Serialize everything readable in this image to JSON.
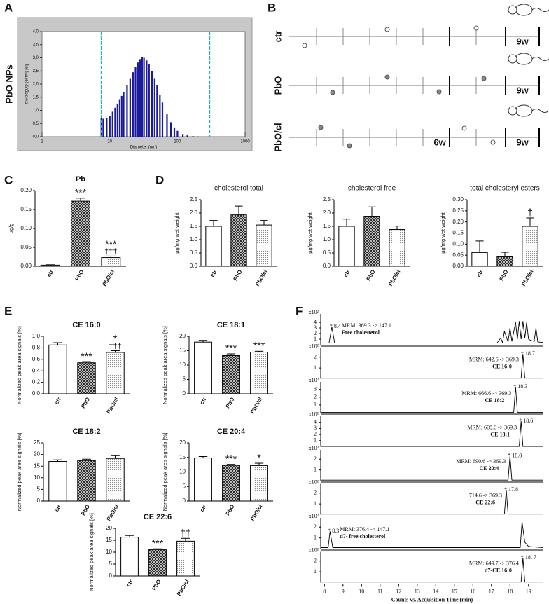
{
  "timeline": {
    "panel": "B",
    "rows": [
      {
        "label": "ctr",
        "end": "9w"
      },
      {
        "label": "PbO",
        "end": "9w"
      },
      {
        "label": "PbO/cl",
        "mid": "6w",
        "end": "9w"
      }
    ]
  },
  "bar_patterns": [
    "none",
    "hatch",
    "dots"
  ],
  "chart_data": [
    {
      "type": "bar",
      "panel": "A",
      "title": "PbO NPs",
      "xlabel": "Diameter (nm)",
      "ylabel": "dV/dlogDp (ecm³) [el]",
      "xlog": true,
      "color": "#1a1a9a",
      "vline_color": "#2ab0b8",
      "x": [
        7.5,
        8,
        9,
        10,
        11,
        12,
        13,
        14,
        15,
        16,
        18,
        20,
        22,
        24,
        26,
        28,
        30,
        32,
        35,
        38,
        42,
        46,
        50,
        55,
        60,
        70,
        80,
        90,
        100,
        120,
        140,
        170,
        200
      ],
      "values": [
        0.72,
        0.68,
        0.7,
        0.8,
        0.95,
        1.1,
        1.25,
        1.4,
        1.55,
        1.7,
        1.95,
        2.2,
        2.45,
        2.65,
        2.82,
        2.95,
        3.02,
        3.0,
        2.9,
        2.75,
        2.5,
        2.2,
        1.95,
        1.6,
        1.3,
        0.85,
        0.55,
        0.35,
        0.22,
        0.1,
        0.05,
        0.02,
        0.01
      ],
      "vlines": [
        7.5,
        300
      ],
      "xlim": [
        1,
        1000
      ],
      "xticks": [
        1,
        10,
        100,
        1000
      ],
      "ylim": [
        0,
        4
      ],
      "yticks": [
        {
          "value": 0,
          "label": "0,0"
        },
        {
          "value": 0.5,
          "label": "0,5"
        },
        {
          "value": 1,
          "label": "1,0"
        },
        {
          "value": 1.5,
          "label": "1,5"
        },
        {
          "value": 2,
          "label": "2,0"
        },
        {
          "value": 2.5,
          "label": "2,5"
        },
        {
          "value": 3,
          "label": "3,0"
        },
        {
          "value": 3.5,
          "label": "3,5"
        },
        {
          "value": 4,
          "label": "4,0"
        }
      ]
    },
    {
      "type": "bar",
      "panel": "C",
      "title": "Pb",
      "ylabel": "µg/g",
      "categories": [
        "ctr",
        "PbO",
        "PbO/cl"
      ],
      "values": [
        0.003,
        0.172,
        0.023
      ],
      "errors": [
        0.001,
        0.008,
        0.004
      ],
      "annotations": [
        null,
        "***",
        "***"
      ],
      "annotations2": [
        null,
        null,
        "†††"
      ],
      "ylim": [
        0,
        0.2
      ],
      "yticks": [
        {
          "value": 0,
          "label": "0.00"
        },
        0.05,
        {
          "value": 0.1,
          "label": "0.10"
        },
        0.15,
        {
          "value": 0.2,
          "label": "0.20"
        }
      ]
    },
    {
      "type": "bar",
      "panel": "D",
      "title": "cholesterol total",
      "ylabel": "µg/mg wet weight",
      "categories": [
        "ctr",
        "PbO",
        "PbO/cl"
      ],
      "values": [
        1.5,
        1.93,
        1.55
      ],
      "errors": [
        0.22,
        0.33,
        0.17
      ],
      "ylim": [
        0,
        2.5
      ],
      "yticks": [
        {
          "value": 0,
          "label": "0.0"
        },
        0.5,
        {
          "value": 1,
          "label": "1.0"
        },
        1.5,
        {
          "value": 2,
          "label": "2.0"
        },
        2.5
      ]
    },
    {
      "type": "bar",
      "title": "cholesterol free",
      "ylabel": "µg/mg wet weight",
      "categories": [
        "ctr",
        "PbO",
        "PbO/cl"
      ],
      "values": [
        1.5,
        1.88,
        1.38
      ],
      "errors": [
        0.27,
        0.35,
        0.13
      ],
      "ylim": [
        0,
        2.5
      ],
      "yticks": [
        {
          "value": 0,
          "label": "0.0"
        },
        0.5,
        {
          "value": 1,
          "label": "1.0"
        },
        1.5,
        {
          "value": 2,
          "label": "2.0"
        },
        2.5
      ]
    },
    {
      "type": "bar",
      "title": "total cholesteryl esters",
      "ylabel": "µg/mg wet weight",
      "categories": [
        "ctr",
        "PbO",
        "PbO/cl"
      ],
      "values": [
        0.062,
        0.043,
        0.18
      ],
      "errors": [
        0.052,
        0.02,
        0.038
      ],
      "annotations": [
        null,
        null,
        "†"
      ],
      "ylim": [
        0,
        0.3
      ],
      "yticks": [
        {
          "value": 0,
          "label": "0.00"
        },
        0.05,
        {
          "value": 0.1,
          "label": "0.10"
        },
        0.15,
        {
          "value": 0.2,
          "label": "0.20"
        },
        0.25,
        {
          "value": 0.3,
          "label": "0.30"
        }
      ]
    },
    {
      "type": "bar",
      "panel": "E",
      "title": "CE 16:0",
      "ylabel": "Normalized peak area signals [%]",
      "categories": [
        "ctr",
        "PbO",
        "PbO/cl"
      ],
      "values": [
        0.85,
        0.54,
        0.72
      ],
      "errors": [
        0.04,
        0.02,
        0.03
      ],
      "annotations": [
        null,
        "***",
        "*"
      ],
      "annotations2": [
        null,
        null,
        "†††"
      ],
      "ylim": [
        0,
        1
      ],
      "yticks": [
        {
          "value": 0,
          "label": "0.0"
        },
        0.2,
        0.4,
        0.6,
        0.8,
        {
          "value": 1,
          "label": "1.0"
        }
      ]
    },
    {
      "type": "bar",
      "title": "CE 18:1",
      "ylabel": "Normalized peak area signals [%]",
      "categories": [
        "ctr",
        "PbO",
        "PbO/cl"
      ],
      "values": [
        18,
        13.3,
        14.5
      ],
      "errors": [
        0.6,
        0.6,
        0.3
      ],
      "annotations": [
        null,
        "***",
        "***"
      ],
      "ylim": [
        0,
        20
      ],
      "yticks": [
        0,
        5,
        10,
        15,
        20
      ]
    },
    {
      "type": "bar",
      "title": "CE 18:2",
      "ylabel": "Normalized peak area signals [%]",
      "categories": [
        "ctr",
        "PbO",
        "PbO/cl"
      ],
      "values": [
        17,
        17.4,
        18.3
      ],
      "errors": [
        0.7,
        0.6,
        1.2
      ],
      "ylim": [
        0,
        25
      ],
      "yticks": [
        0,
        5,
        10,
        15,
        20,
        25
      ]
    },
    {
      "type": "bar",
      "title": "CE 20:4",
      "ylabel": "Normalized peak area signals [%]",
      "categories": [
        "ctr",
        "PbO",
        "PbO/cl"
      ],
      "values": [
        14.8,
        12.3,
        12.2
      ],
      "errors": [
        0.5,
        0.3,
        0.8
      ],
      "annotations": [
        null,
        "***",
        "*"
      ],
      "ylim": [
        0,
        20
      ],
      "yticks": [
        0,
        5,
        10,
        15,
        20
      ]
    },
    {
      "type": "bar",
      "title": "CE 22:6",
      "ylabel": "Normalized peak area signals [%]",
      "categories": [
        "ctr",
        "PbO",
        "PbO/cl"
      ],
      "values": [
        16.3,
        11,
        14.6
      ],
      "errors": [
        0.7,
        0.4,
        1.2
      ],
      "annotations": [
        null,
        "***",
        "††"
      ],
      "ylim": [
        0,
        20
      ],
      "yticks": [
        0,
        5,
        10,
        15,
        20
      ]
    },
    {
      "type": "line",
      "panel": "F",
      "scale_label": "x10²",
      "method": "MRM: 369.3 -> 147.1",
      "compound": "Free cholesterol",
      "peak_label": "* 8.4",
      "peak": 8.4,
      "x": [
        7.8,
        8.25,
        8.4,
        8.55,
        17.3,
        17.5,
        17.6,
        17.7,
        17.9,
        18.0,
        18.1,
        18.3,
        18.4,
        18.5,
        18.6,
        18.7,
        18.8,
        18.9,
        19.0,
        19.1,
        19.3,
        19.4,
        19.5,
        19.8
      ],
      "values": [
        0.3,
        0.3,
        3.2,
        0.3,
        0.3,
        1.2,
        0.4,
        2.4,
        0.5,
        3.0,
        0.6,
        4.0,
        1.0,
        4.2,
        1.0,
        4.2,
        1.2,
        4.0,
        1.0,
        0.8,
        0.6,
        3.0,
        0.5,
        0.4
      ],
      "xlim": [
        7.8,
        19.8
      ],
      "ylim": [
        0,
        5
      ],
      "yticks": [
        1,
        2,
        3,
        4
      ]
    },
    {
      "type": "line",
      "scale_label": "x10²",
      "method": "MRM: 642.6 -> 369.3",
      "compound": "CE 16:0",
      "peak_label": "* 18.7",
      "peak": 18.7,
      "x": [
        7.8,
        18.6,
        18.7,
        18.8,
        19.8
      ],
      "values": [
        0.05,
        0.05,
        2.3,
        0.05,
        0.05
      ],
      "xlim": [
        7.8,
        19.8
      ],
      "ylim": [
        0,
        2.6
      ],
      "yticks": [
        1,
        2
      ]
    },
    {
      "type": "line",
      "scale_label": "x10²",
      "method": "MRM: 666.6 -> 369.3",
      "compound": "CE 18:2",
      "peak_label": "* 18.3",
      "peak": 18.3,
      "x": [
        7.8,
        18.2,
        18.3,
        18.4,
        19.8
      ],
      "values": [
        0.05,
        0.05,
        3.3,
        0.05,
        0.05
      ],
      "xlim": [
        7.8,
        19.8
      ],
      "ylim": [
        0,
        3.6
      ],
      "yticks": [
        1,
        2,
        3
      ]
    },
    {
      "type": "line",
      "scale_label": "x10²",
      "method": "MRM: 668.6 -> 369.3",
      "compound": "CE 18:1",
      "peak_label": "* 18.6",
      "peak": 18.6,
      "x": [
        7.8,
        18.5,
        18.6,
        18.7,
        19.8
      ],
      "values": [
        0.05,
        0.05,
        4.2,
        0.05,
        0.05
      ],
      "xlim": [
        7.8,
        19.8
      ],
      "ylim": [
        0,
        4.6
      ],
      "yticks": [
        1,
        2,
        3,
        4
      ]
    },
    {
      "type": "line",
      "scale_label": "x10²",
      "method": "MRM: 690.6 -> 369.3",
      "compound": "CE 20:4",
      "peak_label": "* 18.0",
      "peak": 18.0,
      "x": [
        7.8,
        17.9,
        18.0,
        18.1,
        19.8
      ],
      "values": [
        0.05,
        0.05,
        2.3,
        0.05,
        0.05
      ],
      "xlim": [
        7.8,
        19.8
      ],
      "ylim": [
        0,
        2.6
      ],
      "yticks": [
        1,
        2
      ]
    },
    {
      "type": "line",
      "scale_label": "x10²",
      "method": "714.6 -> 369.3",
      "compound": "CE 22:6",
      "peak_label": "* 17.8",
      "peak": 17.8,
      "x": [
        7.8,
        17.7,
        17.8,
        17.9,
        19.8
      ],
      "values": [
        0.05,
        0.05,
        2.3,
        0.05,
        0.05
      ],
      "xlim": [
        7.8,
        19.8
      ],
      "ylim": [
        0,
        2.6
      ],
      "yticks": [
        1,
        2
      ]
    },
    {
      "type": "line",
      "scale_label": "x10²",
      "method": "MRM: 376.4 -> 147.1",
      "compound": "d7- free cholesterol",
      "peak_label": "* 8.3",
      "peak": 8.3,
      "x": [
        7.8,
        8.2,
        8.3,
        8.45,
        18.55,
        18.65,
        18.8,
        19.0,
        19.8
      ],
      "values": [
        0.1,
        0.1,
        1.6,
        0.1,
        0.1,
        2.5,
        0.6,
        0.2,
        0.1
      ],
      "xlim": [
        7.8,
        19.8
      ],
      "ylim": [
        0,
        2.6
      ],
      "yticks": [
        1,
        2
      ]
    },
    {
      "type": "line",
      "scale_label": "x10²",
      "method": "MRM: 649.7 -> 376.4",
      "compound": "d7-CE 16:0",
      "peak_label": "* 18. 7",
      "peak": 18.7,
      "x": [
        7.8,
        18.6,
        18.7,
        18.8,
        19.8
      ],
      "values": [
        0.05,
        0.05,
        2.3,
        0.05,
        0.05
      ],
      "xlim": [
        7.8,
        19.8
      ],
      "ylim": [
        0,
        2.6
      ],
      "yticks": [
        1,
        2
      ],
      "xlabel": "Counts vs. Acquisition Time (min)",
      "xticks": [
        8,
        9,
        10,
        11,
        12,
        13,
        14,
        15,
        16,
        17,
        18,
        19
      ]
    }
  ]
}
